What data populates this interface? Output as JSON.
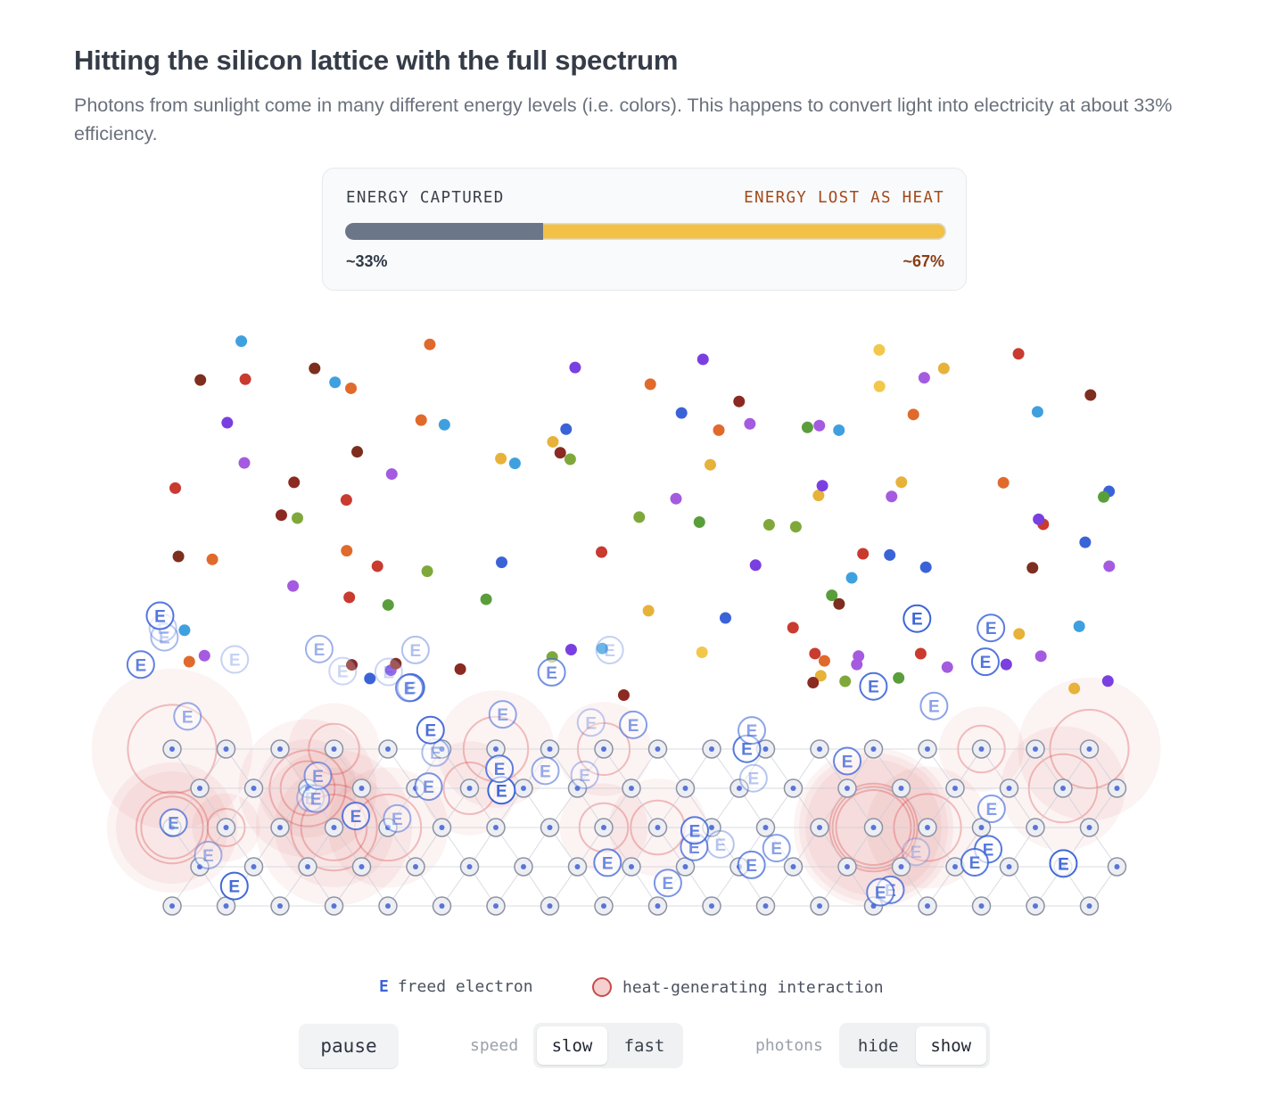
{
  "header": {
    "title": "Hitting the silicon lattice with the full spectrum",
    "subtitle": "Photons from sunlight come in many different energy levels (i.e. colors). This happens to convert light into electricity at about 33% efficiency."
  },
  "energy": {
    "captured_label": "ENERGY CAPTURED",
    "lost_label": "ENERGY LOST AS HEAT",
    "captured_pct_text": "~33%",
    "lost_pct_text": "~67%",
    "captured_fraction": 0.33,
    "colors": {
      "captured": "#6b7689",
      "lost": "#f2c145",
      "lost_text": "#a4491a"
    }
  },
  "simulation": {
    "electron_glyph": "E",
    "photon_colors": [
      "#8b2a22",
      "#c93a2f",
      "#e06a2c",
      "#f2c84b",
      "#e7b23a",
      "#5a9e3c",
      "#7fa83a",
      "#3fa0e0",
      "#3b63d8",
      "#7a3fe0",
      "#a45be0",
      "#7d2e1f"
    ],
    "electron_color": "#3b63d8",
    "heat_color": "#d9504f"
  },
  "legend": {
    "electron_glyph": "E",
    "electron_label": "freed electron",
    "heat_label": "heat-generating interaction"
  },
  "controls": {
    "pause_label": "pause",
    "speed_label": "speed",
    "speed_options": [
      "slow",
      "fast"
    ],
    "speed_selected": "slow",
    "photons_label": "photons",
    "photons_options": [
      "hide",
      "show"
    ],
    "photons_selected": "show"
  }
}
